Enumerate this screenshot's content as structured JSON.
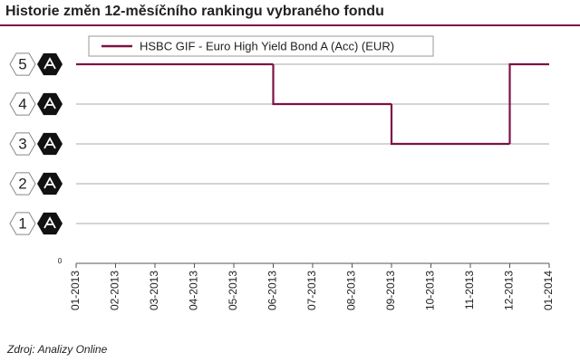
{
  "chart_data": {
    "type": "line",
    "step": true,
    "title": "Historie změn 12-měsíčního rankingu vybraného fondu",
    "source": "Zdroj: Analizy Online",
    "categories": [
      "01-2013",
      "02-2013",
      "03-2013",
      "04-2013",
      "05-2013",
      "06-2013",
      "07-2013",
      "08-2013",
      "09-2013",
      "10-2013",
      "11-2013",
      "12-2013",
      "01-2014"
    ],
    "series": [
      {
        "name": "HSBC GIF - Euro High Yield Bond A (Acc) (EUR)",
        "color": "#7d1245",
        "values": [
          5,
          5,
          5,
          5,
          5,
          4,
          4,
          4,
          3,
          3,
          3,
          5,
          5
        ]
      }
    ],
    "ylim": [
      0,
      5.6
    ],
    "yticks": [
      0,
      1,
      2,
      3,
      4,
      5
    ],
    "grid": true,
    "legend": "top"
  }
}
